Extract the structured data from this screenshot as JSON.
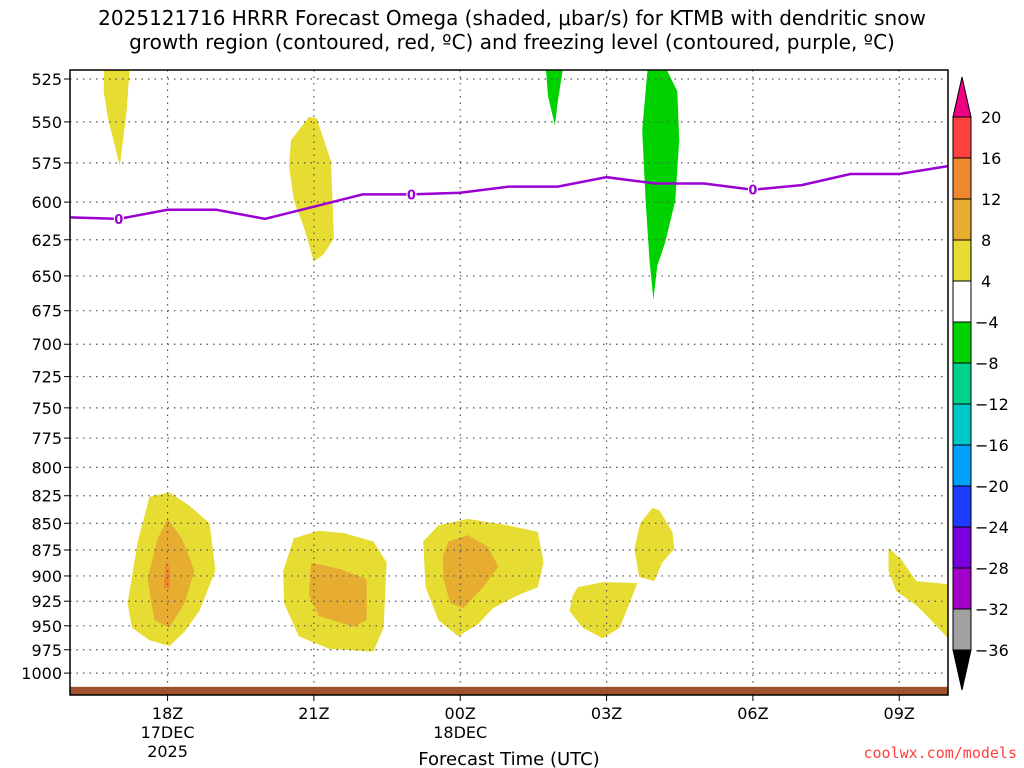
{
  "chart_data": {
    "type": "contour",
    "title_lines": [
      "2025121716 HRRR Forecast Omega (shaded, μbar/s) for KTMB with dendritic snow",
      "growth region (contoured, red, ºC) and freezing level (contoured, purple, ºC)"
    ],
    "xlabel": "Forecast Time (UTC)",
    "x_units": "hours since 16Z 17DEC2025",
    "xlim": [
      0,
      18
    ],
    "x_ticks": [
      {
        "hour": 2,
        "lines": [
          "18Z",
          "17DEC",
          "2025"
        ]
      },
      {
        "hour": 5,
        "lines": [
          "21Z"
        ]
      },
      {
        "hour": 8,
        "lines": [
          "00Z",
          "18DEC"
        ]
      },
      {
        "hour": 11,
        "lines": [
          "03Z"
        ]
      },
      {
        "hour": 14,
        "lines": [
          "06Z"
        ]
      },
      {
        "hour": 17,
        "lines": [
          "09Z"
        ]
      }
    ],
    "ylabel": "Pressure (hPa)",
    "ylim": [
      520,
      1025
    ],
    "y_scale": "log",
    "y_ticks": [
      525,
      550,
      575,
      600,
      625,
      650,
      675,
      700,
      725,
      750,
      775,
      800,
      825,
      850,
      875,
      900,
      925,
      950,
      975,
      1000
    ],
    "grid": true,
    "surface_pressure": 1015,
    "colorbar": {
      "levels": [
        "20",
        "16",
        "12",
        "8",
        "4",
        "-4",
        "-8",
        "-12",
        "-16",
        "-20",
        "-24",
        "-28",
        "-32",
        "-36"
      ],
      "colors": [
        "#ff4040",
        "#f08830",
        "#e6ad30",
        "#e6dc32",
        "#ffffff",
        "#00d200",
        "#00d28c",
        "#00c8c8",
        "#00a0ff",
        "#1e3cff",
        "#7800dc",
        "#a000c8",
        "#a0a0a0"
      ],
      "over_color": "#f00082",
      "under_color": "#000000"
    },
    "omega_regions": [
      {
        "range": "4 to 8",
        "color": "#e6dc32",
        "points": [
          [
            0.7,
            520
          ],
          [
            1.22,
            520
          ],
          [
            1.16,
            544
          ],
          [
            1.02,
            577
          ],
          [
            0.78,
            548
          ],
          [
            0.69,
            532
          ]
        ]
      },
      {
        "range": "4 to 8",
        "color": "#e6dc32",
        "points": [
          [
            4.9,
            547
          ],
          [
            5.06,
            548
          ],
          [
            5.35,
            574
          ],
          [
            5.41,
            624
          ],
          [
            5.2,
            635
          ],
          [
            5.0,
            640
          ],
          [
            4.8,
            617
          ],
          [
            4.59,
            599
          ],
          [
            4.49,
            577
          ],
          [
            4.53,
            561
          ]
        ]
      },
      {
        "range": "4 to 8",
        "color": "#e6dc32",
        "points": [
          [
            1.63,
            826
          ],
          [
            2.04,
            822
          ],
          [
            2.45,
            834
          ],
          [
            2.86,
            850
          ],
          [
            2.98,
            895
          ],
          [
            2.65,
            935
          ],
          [
            2.35,
            956
          ],
          [
            2.04,
            971
          ],
          [
            1.63,
            965
          ],
          [
            1.27,
            952
          ],
          [
            1.18,
            927
          ],
          [
            1.39,
            867
          ]
        ]
      },
      {
        "range": "8 to 12",
        "color": "#e6ad30",
        "points": [
          [
            2.0,
            846
          ],
          [
            2.29,
            864
          ],
          [
            2.55,
            895
          ],
          [
            2.35,
            927
          ],
          [
            2.04,
            952
          ],
          [
            1.73,
            944
          ],
          [
            1.59,
            903
          ],
          [
            1.8,
            864
          ]
        ]
      },
      {
        "range": "12 to 16",
        "color": "#f08830",
        "points": [
          [
            1.96,
            885
          ],
          [
            2.04,
            893
          ],
          [
            2.04,
            912
          ],
          [
            1.92,
            912
          ]
        ]
      },
      {
        "range": "4 to 8",
        "color": "#e6dc32",
        "points": [
          [
            4.59,
            864
          ],
          [
            5.1,
            857
          ],
          [
            5.61,
            859
          ],
          [
            6.22,
            867
          ],
          [
            6.49,
            887
          ],
          [
            6.43,
            952
          ],
          [
            6.22,
            977
          ],
          [
            5.31,
            974
          ],
          [
            4.69,
            961
          ],
          [
            4.39,
            927
          ],
          [
            4.37,
            895
          ]
        ]
      },
      {
        "range": "8 to 12",
        "color": "#e6ad30",
        "points": [
          [
            4.94,
            887
          ],
          [
            5.51,
            893
          ],
          [
            6.08,
            903
          ],
          [
            6.08,
            944
          ],
          [
            5.82,
            951
          ],
          [
            5.1,
            940
          ],
          [
            4.9,
            919
          ]
        ]
      },
      {
        "range": "4 to 8",
        "color": "#e6dc32",
        "points": [
          [
            7.55,
            852
          ],
          [
            8.16,
            846
          ],
          [
            8.98,
            852
          ],
          [
            9.59,
            858
          ],
          [
            9.71,
            887
          ],
          [
            9.59,
            911
          ],
          [
            9.18,
            919
          ],
          [
            8.67,
            932
          ],
          [
            8.37,
            948
          ],
          [
            7.96,
            961
          ],
          [
            7.55,
            944
          ],
          [
            7.29,
            911
          ],
          [
            7.24,
            867
          ]
        ]
      },
      {
        "range": "8 to 12",
        "color": "#e6ad30",
        "points": [
          [
            7.76,
            867
          ],
          [
            8.16,
            861
          ],
          [
            8.57,
            872
          ],
          [
            8.78,
            891
          ],
          [
            8.47,
            911
          ],
          [
            8.06,
            932
          ],
          [
            7.8,
            927
          ],
          [
            7.65,
            903
          ],
          [
            7.65,
            880
          ]
        ]
      },
      {
        "range": "4 to 8",
        "color": "#e6dc32",
        "points": [
          [
            10.41,
            911
          ],
          [
            10.92,
            906
          ],
          [
            11.63,
            907
          ],
          [
            11.47,
            927
          ],
          [
            11.27,
            952
          ],
          [
            10.92,
            963
          ],
          [
            10.51,
            952
          ],
          [
            10.24,
            935
          ],
          [
            10.31,
            919
          ]
        ]
      },
      {
        "range": "4 to 8",
        "color": "#e6dc32",
        "points": [
          [
            11.94,
            836
          ],
          [
            12.08,
            838
          ],
          [
            12.35,
            858
          ],
          [
            12.39,
            874
          ],
          [
            12.14,
            887
          ],
          [
            11.98,
            905
          ],
          [
            11.67,
            901
          ],
          [
            11.57,
            874
          ],
          [
            11.69,
            850
          ]
        ]
      },
      {
        "range": "4 to 8",
        "color": "#e6dc32",
        "points": [
          [
            16.78,
            873
          ],
          [
            17.04,
            884
          ],
          [
            17.35,
            905
          ],
          [
            18,
            908
          ],
          [
            18,
            963
          ],
          [
            17.65,
            944
          ],
          [
            17.35,
            929
          ],
          [
            16.94,
            915
          ],
          [
            16.78,
            895
          ]
        ]
      },
      {
        "range": "-8 to -4",
        "color": "#00d200",
        "points": [
          [
            9.76,
            520
          ],
          [
            10.1,
            520
          ],
          [
            10.0,
            538
          ],
          [
            9.94,
            552
          ],
          [
            9.8,
            535
          ]
        ]
      },
      {
        "range": "-8 to -4",
        "color": "#00d200",
        "points": [
          [
            11.84,
            520
          ],
          [
            12.24,
            520
          ],
          [
            12.45,
            532
          ],
          [
            12.49,
            561
          ],
          [
            12.41,
            599
          ],
          [
            12.2,
            627
          ],
          [
            12.04,
            643
          ],
          [
            11.96,
            667
          ],
          [
            11.88,
            639
          ],
          [
            11.8,
            599
          ],
          [
            11.73,
            555
          ],
          [
            11.8,
            532
          ]
        ]
      }
    ],
    "freezing_level": {
      "label": "0",
      "color": "#9b00d2",
      "label_hours": [
        1,
        7,
        14
      ],
      "hours": [
        0,
        1,
        2,
        3,
        4,
        5,
        6,
        7,
        8,
        9,
        10,
        11,
        12,
        13,
        14,
        15,
        16,
        17,
        18
      ],
      "pressure": [
        610,
        611,
        605,
        605,
        611,
        603,
        595,
        595,
        594,
        590,
        590,
        584,
        588,
        588,
        592,
        589,
        582,
        582,
        577
      ]
    },
    "credit": "coolwx.com/models"
  }
}
